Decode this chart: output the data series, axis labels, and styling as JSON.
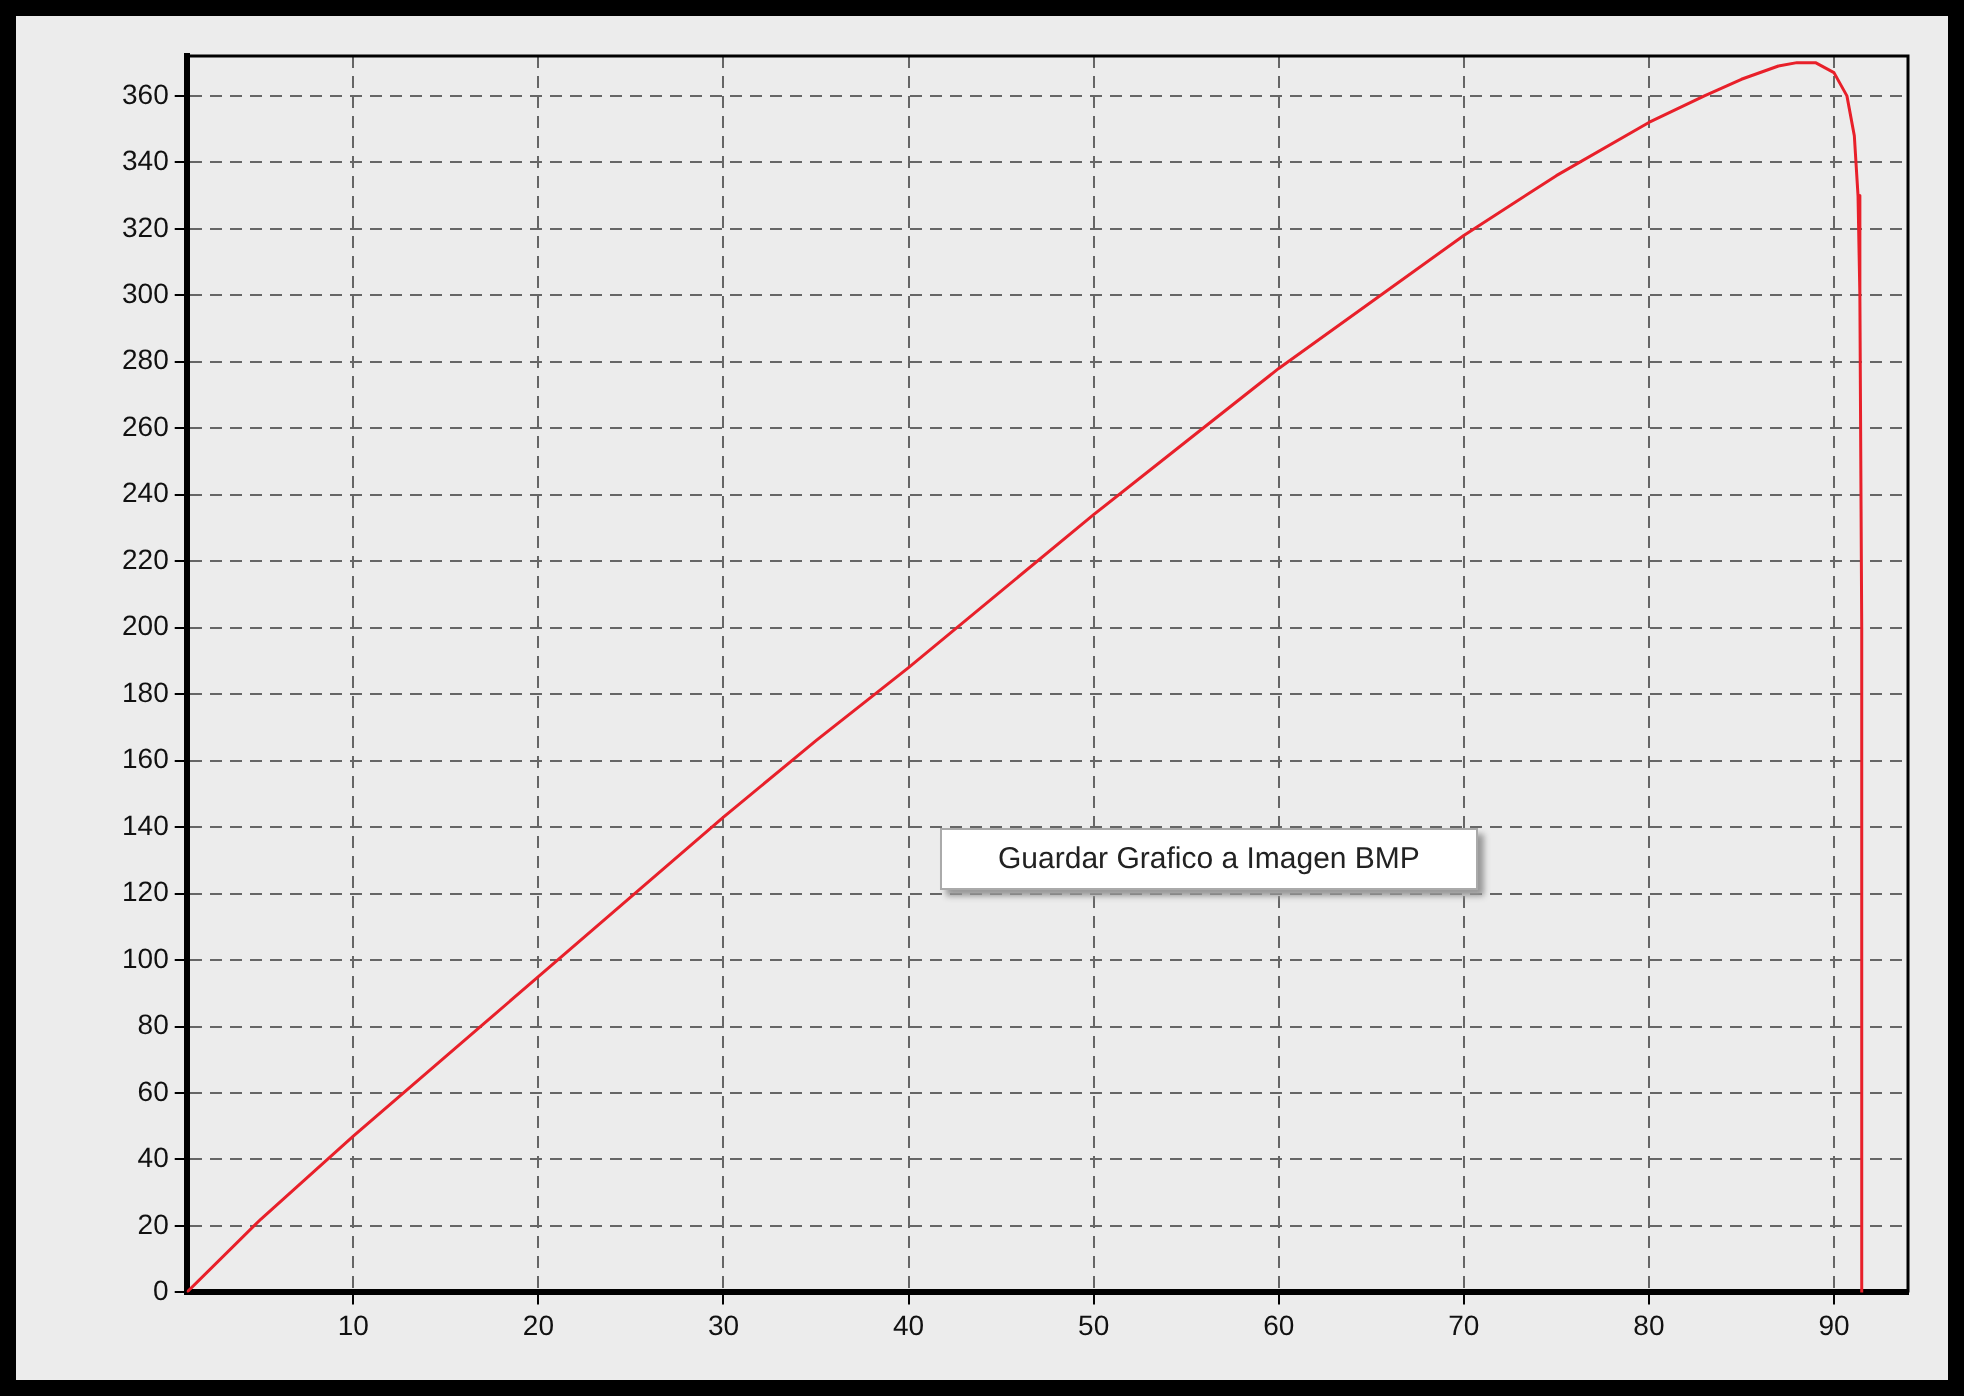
{
  "chart_data": {
    "type": "line",
    "x": [
      1,
      5,
      10,
      15,
      20,
      25,
      30,
      35,
      40,
      45,
      50,
      55,
      60,
      65,
      70,
      75,
      80,
      83,
      85,
      87,
      88,
      89,
      90,
      90.7,
      91.1,
      91.3,
      91.4,
      91.5,
      91.5
    ],
    "series": [
      {
        "color": "#e8202a",
        "values": [
          0,
          22,
          47,
          71,
          95,
          119,
          143,
          166,
          188,
          211,
          234,
          256,
          278,
          298,
          318,
          336,
          352,
          360,
          365,
          369,
          370,
          370,
          367,
          360,
          348,
          330,
          300,
          200,
          0
        ]
      }
    ],
    "xlim": [
      1,
      94
    ],
    "xticks": [
      10,
      20,
      30,
      40,
      50,
      60,
      70,
      80,
      90
    ],
    "ylim": [
      0,
      372
    ],
    "yticks": [
      0,
      20,
      40,
      60,
      80,
      100,
      120,
      140,
      160,
      180,
      200,
      220,
      240,
      260,
      280,
      300,
      320,
      340,
      360
    ],
    "grid": true,
    "marker": "none",
    "line_style": "solid",
    "annotations": [
      "Guardar Grafico a Imagen BMP"
    ]
  }
}
